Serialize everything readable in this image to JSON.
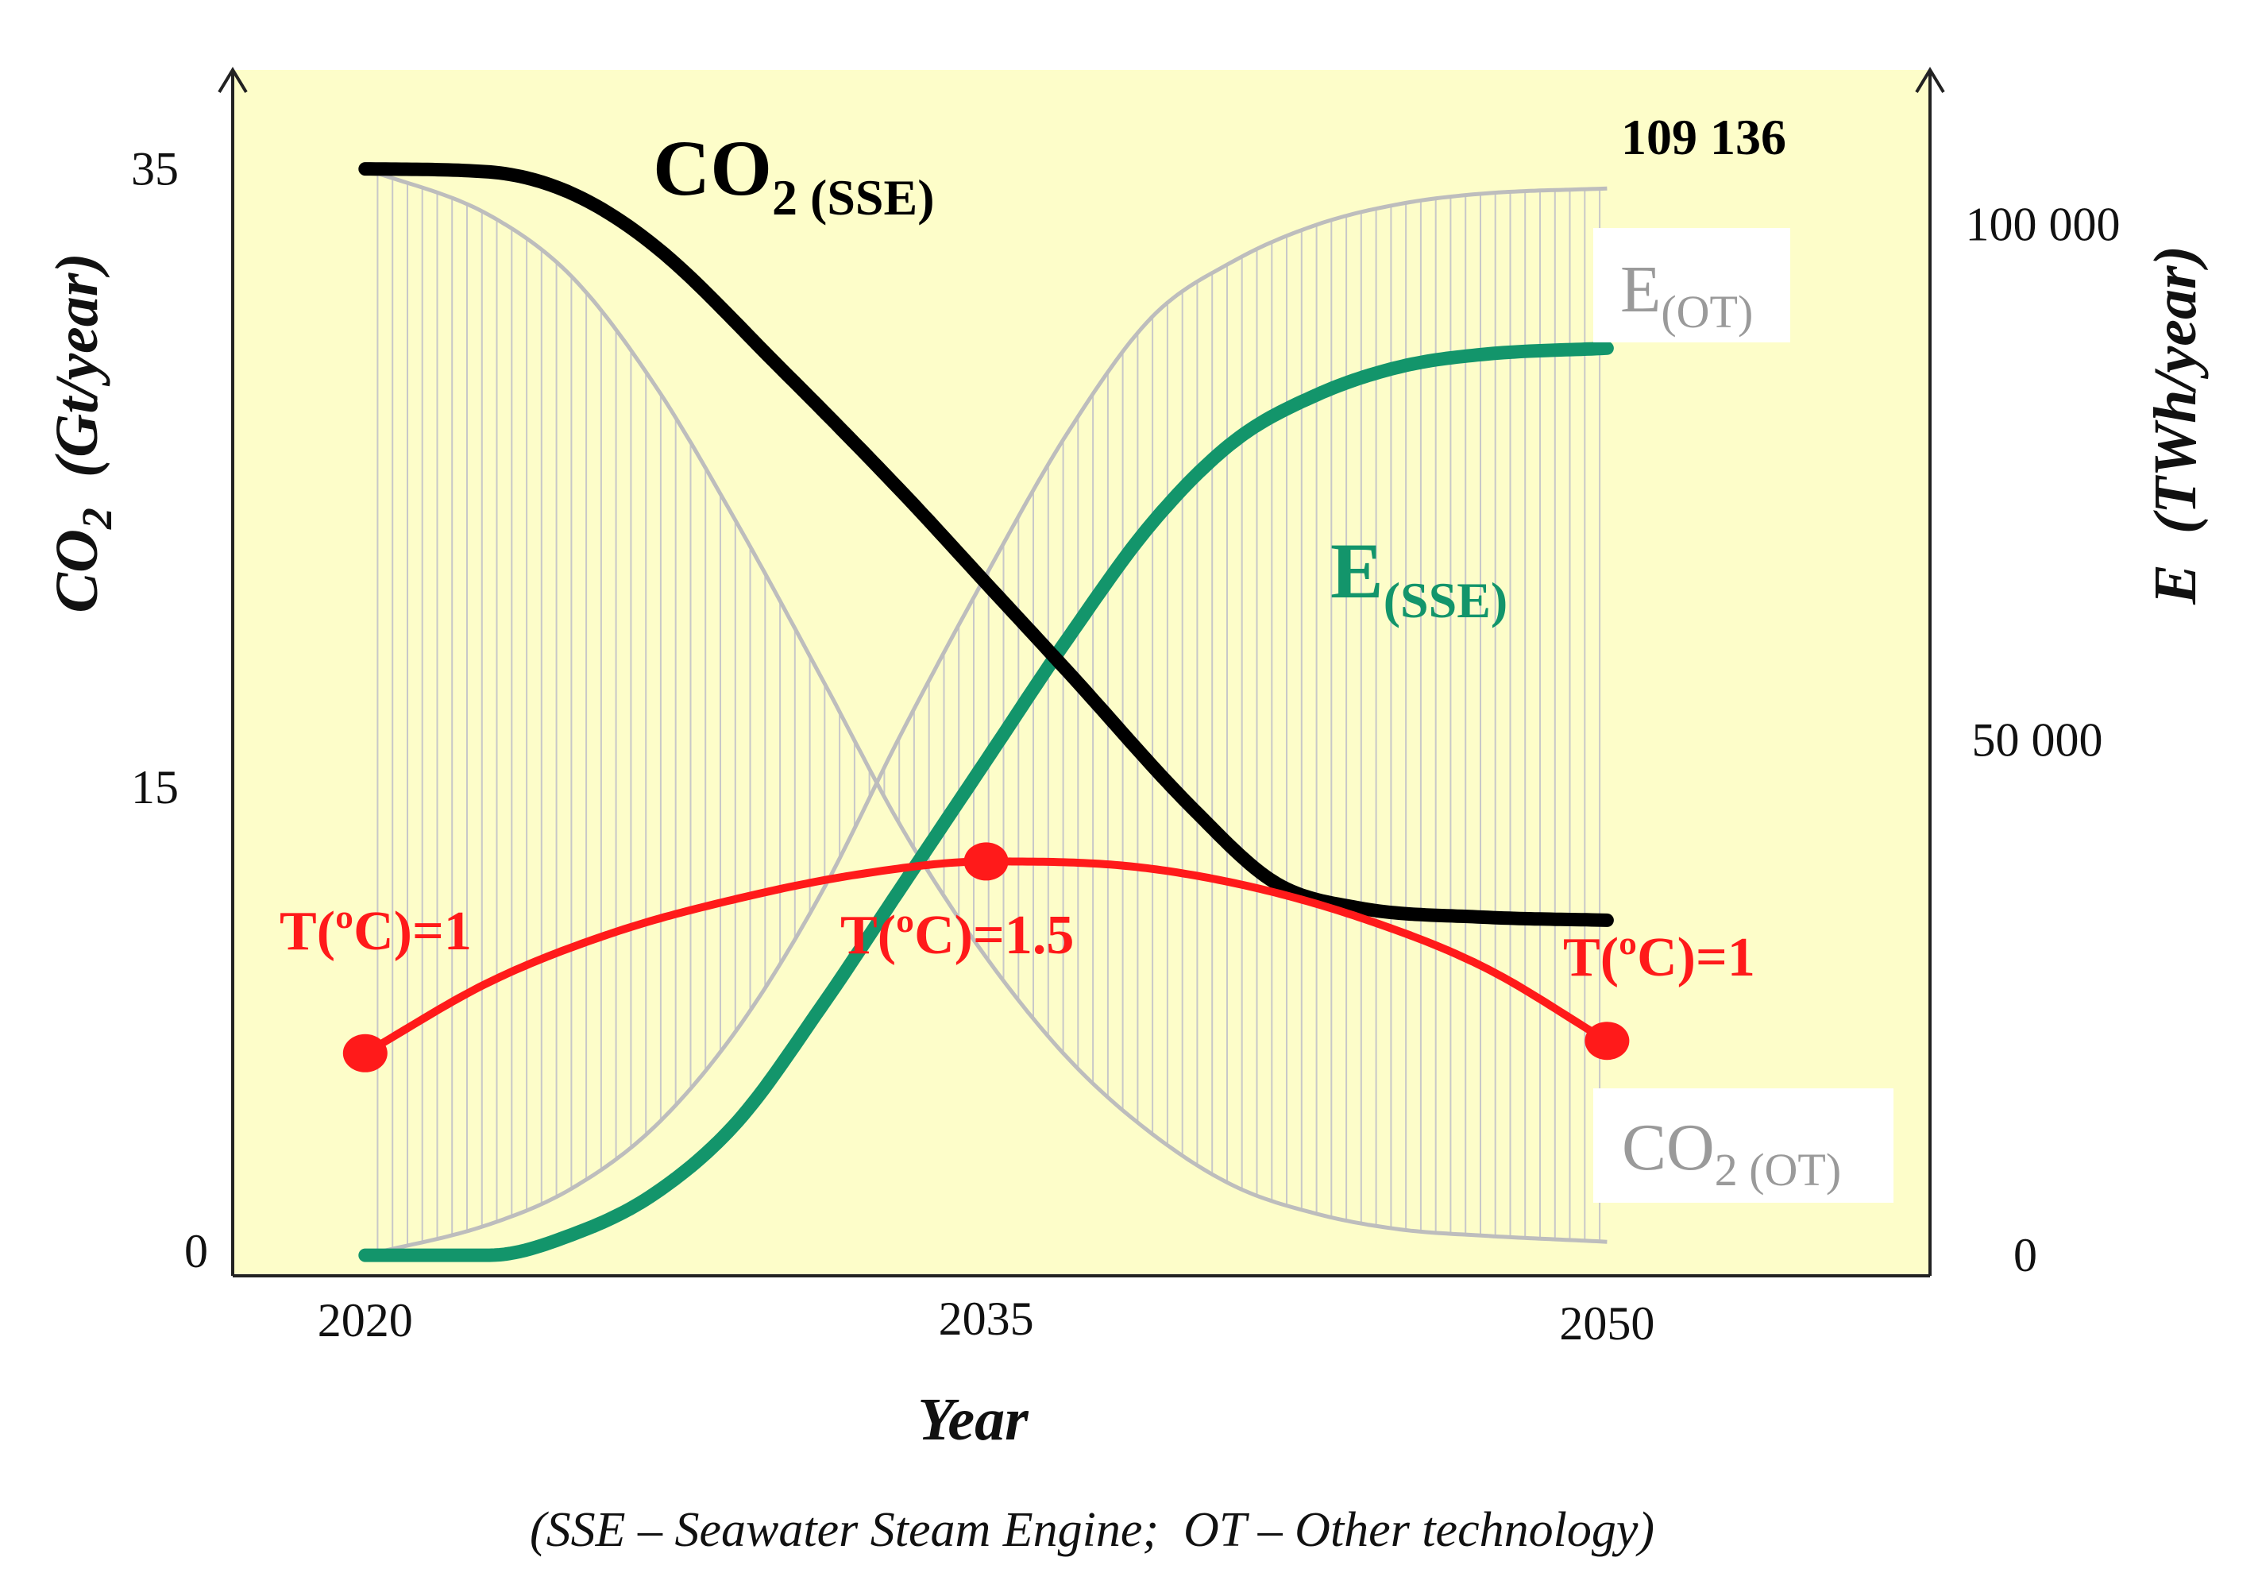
{
  "chart_data": {
    "type": "line",
    "x_label": "Year",
    "x_ticks": [
      "2020",
      "2035",
      "2050"
    ],
    "x_range": [
      2016.8,
      2057.8
    ],
    "y_left": {
      "label_main": "CO",
      "label_sub": "2",
      "label_rest": "  (Gt/year)",
      "ticks": [
        {
          "value": 35,
          "label": "35"
        },
        {
          "value": 15,
          "label": "15"
        },
        {
          "value": 0,
          "label": "0"
        }
      ],
      "range": [
        -0.8,
        38.2
      ]
    },
    "y_right": {
      "label": "E  (TWh/year)",
      "ticks": [
        {
          "value": 100000,
          "label": "100 000"
        },
        {
          "value": 50000,
          "label": "50 000"
        },
        {
          "value": 0,
          "label": "0"
        }
      ],
      "range": [
        -2000,
        115000
      ]
    },
    "max_label": "109 136",
    "series": [
      {
        "name_main": "CO",
        "name_sub": "2 (SSE)",
        "axis": "left",
        "color": "#000000",
        "x": [
          2020,
          2023,
          2025,
          2027,
          2030,
          2033,
          2035,
          2037,
          2040,
          2042,
          2044,
          2047,
          2050
        ],
        "y": [
          35,
          34.9,
          34.2,
          32.5,
          28.6,
          24.5,
          21.6,
          18.7,
          14.3,
          11.9,
          11.1,
          10.8,
          10.7
        ]
      },
      {
        "name_main": "E",
        "name_sub": "(SSE)",
        "axis": "right",
        "color": "#13956b",
        "x": [
          2020,
          2023,
          2025,
          2027,
          2029,
          2031,
          2033,
          2035,
          2037,
          2039,
          2041,
          2043,
          2045,
          2047,
          2050
        ],
        "y": [
          0,
          0,
          2000,
          6000,
          13000,
          24000,
          36000,
          48000,
          60000,
          71000,
          79000,
          83500,
          86200,
          87400,
          88000
        ]
      },
      {
        "name_main": "E",
        "name_sub": "(OT)",
        "axis": "right",
        "color": "#bdbdbd",
        "x": [
          2020,
          2023,
          2025,
          2027,
          2029,
          2031,
          2033,
          2035,
          2037,
          2039,
          2041,
          2043,
          2045,
          2047,
          2050
        ],
        "y": [
          0,
          3000,
          6500,
          12500,
          22000,
          35000,
          51000,
          66000,
          80000,
          91000,
          96500,
          100000,
          102000,
          103000,
          103500
        ]
      },
      {
        "name_main": "CO",
        "name_sub": "2 (OT)",
        "axis": "left",
        "color": "#bdbdbd",
        "x": [
          2020,
          2023,
          2025,
          2027,
          2029,
          2031,
          2033,
          2035,
          2037,
          2039,
          2041,
          2043,
          2045,
          2047,
          2050
        ],
        "y": [
          35,
          33.5,
          31.5,
          28,
          23.5,
          18.6,
          13.6,
          9.5,
          6.2,
          3.8,
          2.1,
          1.2,
          0.7,
          0.5,
          0.3
        ]
      },
      {
        "name": "T(ºC)",
        "axis": "left",
        "color": "#ff1a1a",
        "x": [
          2020,
          2023,
          2026,
          2029,
          2032,
          2035,
          2038,
          2041,
          2044,
          2047,
          2050
        ],
        "y": [
          6.4,
          8.7,
          10.3,
          11.4,
          12.2,
          12.6,
          12.5,
          11.9,
          10.8,
          9.2,
          6.8
        ],
        "markers": [
          {
            "x": 2020,
            "y": 6.4,
            "label": "T(ºC)=1"
          },
          {
            "x": 2035,
            "y": 12.6,
            "label": "T(ºC)=1.5"
          },
          {
            "x": 2050,
            "y": 6.8,
            "label": "T(ºC)=1"
          }
        ]
      }
    ],
    "footnote": "(SSE – Seawater Steam Engine;  OT – Other technology)"
  },
  "colors": {
    "plot_background": "#fdfdc9",
    "axes": "#222222",
    "hatch": "#c8c8c8",
    "label_box": "#ffffff"
  }
}
